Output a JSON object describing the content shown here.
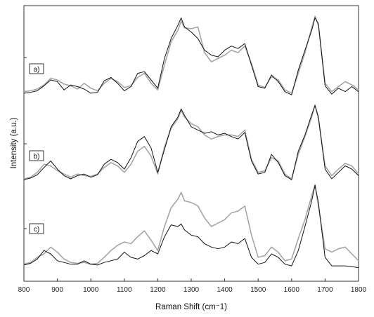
{
  "chart_data": {
    "type": "line",
    "xlabel": "Raman Shift (cm⁻1)",
    "ylabel": "Intensity (a.u.)",
    "xlim": [
      800,
      1800
    ],
    "x_ticks": [
      "800",
      "900",
      "1000",
      "1100",
      "1200",
      "1300",
      "1400",
      "1500",
      "1600",
      "1700",
      "1800"
    ],
    "grid": false,
    "legend": "none",
    "colors": {
      "dark": "#111111",
      "light": "#a6a6a6"
    },
    "panels": [
      {
        "label": "a)",
        "series": [
          {
            "color": "dark",
            "x": [
              800,
              820,
              840,
              860,
              880,
              900,
              920,
              940,
              960,
              980,
              1000,
              1020,
              1040,
              1060,
              1080,
              1100,
              1120,
              1140,
              1160,
              1180,
              1200,
              1220,
              1240,
              1260,
              1270,
              1280,
              1300,
              1320,
              1340,
              1360,
              1380,
              1400,
              1420,
              1440,
              1460,
              1480,
              1500,
              1520,
              1540,
              1560,
              1580,
              1600,
              1620,
              1640,
              1660,
              1670,
              1680,
              1700,
              1720,
              1740,
              1760,
              1780,
              1800
            ],
            "y": [
              0.06,
              0.07,
              0.09,
              0.15,
              0.22,
              0.2,
              0.1,
              0.16,
              0.14,
              0.11,
              0.06,
              0.07,
              0.21,
              0.25,
              0.18,
              0.09,
              0.14,
              0.3,
              0.32,
              0.22,
              0.12,
              0.48,
              0.72,
              0.88,
              0.97,
              0.86,
              0.8,
              0.72,
              0.58,
              0.52,
              0.5,
              0.58,
              0.63,
              0.6,
              0.66,
              0.4,
              0.14,
              0.12,
              0.28,
              0.2,
              0.08,
              0.04,
              0.34,
              0.58,
              0.82,
              0.97,
              0.9,
              0.15,
              0.05,
              0.12,
              0.08,
              0.14,
              0.08
            ]
          },
          {
            "color": "light",
            "x": [
              800,
              820,
              840,
              860,
              880,
              900,
              920,
              940,
              960,
              980,
              1000,
              1020,
              1040,
              1060,
              1080,
              1100,
              1120,
              1140,
              1160,
              1180,
              1200,
              1220,
              1240,
              1260,
              1270,
              1280,
              1300,
              1320,
              1340,
              1360,
              1380,
              1400,
              1420,
              1440,
              1460,
              1480,
              1500,
              1520,
              1540,
              1560,
              1580,
              1600,
              1620,
              1640,
              1660,
              1670,
              1680,
              1700,
              1720,
              1740,
              1760,
              1780,
              1800
            ],
            "y": [
              0.08,
              0.09,
              0.11,
              0.16,
              0.24,
              0.22,
              0.17,
              0.15,
              0.11,
              0.18,
              0.12,
              0.09,
              0.18,
              0.24,
              0.2,
              0.13,
              0.15,
              0.25,
              0.3,
              0.18,
              0.1,
              0.4,
              0.68,
              0.82,
              0.93,
              0.85,
              0.84,
              0.86,
              0.55,
              0.44,
              0.48,
              0.52,
              0.58,
              0.55,
              0.63,
              0.42,
              0.16,
              0.13,
              0.26,
              0.22,
              0.1,
              0.06,
              0.3,
              0.55,
              0.85,
              0.99,
              0.88,
              0.18,
              0.08,
              0.14,
              0.2,
              0.16,
              0.1
            ]
          }
        ]
      },
      {
        "label": "b)",
        "series": [
          {
            "color": "dark",
            "x": [
              800,
              820,
              840,
              860,
              880,
              900,
              920,
              940,
              960,
              980,
              1000,
              1020,
              1040,
              1060,
              1080,
              1100,
              1120,
              1140,
              1160,
              1180,
              1200,
              1220,
              1240,
              1260,
              1270,
              1280,
              1300,
              1320,
              1340,
              1360,
              1380,
              1400,
              1420,
              1440,
              1460,
              1480,
              1500,
              1520,
              1540,
              1560,
              1580,
              1600,
              1620,
              1640,
              1660,
              1670,
              1680,
              1700,
              1720,
              1740,
              1760,
              1780,
              1800
            ],
            "y": [
              0.05,
              0.07,
              0.11,
              0.2,
              0.28,
              0.18,
              0.1,
              0.06,
              0.1,
              0.12,
              0.08,
              0.11,
              0.24,
              0.3,
              0.26,
              0.18,
              0.32,
              0.52,
              0.58,
              0.44,
              0.14,
              0.42,
              0.7,
              0.82,
              0.92,
              0.84,
              0.7,
              0.66,
              0.62,
              0.64,
              0.6,
              0.62,
              0.58,
              0.55,
              0.63,
              0.28,
              0.12,
              0.14,
              0.36,
              0.26,
              0.1,
              0.05,
              0.4,
              0.6,
              0.85,
              0.96,
              0.82,
              0.18,
              0.06,
              0.14,
              0.22,
              0.18,
              0.1
            ]
          },
          {
            "color": "light",
            "x": [
              800,
              820,
              840,
              860,
              880,
              900,
              920,
              940,
              960,
              980,
              1000,
              1020,
              1040,
              1060,
              1080,
              1100,
              1120,
              1140,
              1160,
              1180,
              1200,
              1220,
              1240,
              1260,
              1270,
              1280,
              1300,
              1320,
              1340,
              1360,
              1380,
              1400,
              1420,
              1440,
              1460,
              1480,
              1500,
              1520,
              1540,
              1560,
              1580,
              1600,
              1620,
              1640,
              1660,
              1670,
              1680,
              1700,
              1720,
              1740,
              1760,
              1780,
              1800
            ],
            "y": [
              0.06,
              0.08,
              0.14,
              0.24,
              0.22,
              0.16,
              0.12,
              0.08,
              0.12,
              0.1,
              0.09,
              0.12,
              0.2,
              0.26,
              0.22,
              0.14,
              0.24,
              0.4,
              0.46,
              0.34,
              0.12,
              0.45,
              0.68,
              0.8,
              0.9,
              0.82,
              0.74,
              0.7,
              0.6,
              0.55,
              0.58,
              0.6,
              0.6,
              0.58,
              0.66,
              0.3,
              0.14,
              0.16,
              0.32,
              0.28,
              0.12,
              0.06,
              0.36,
              0.58,
              0.82,
              0.97,
              0.8,
              0.22,
              0.1,
              0.18,
              0.25,
              0.22,
              0.12
            ]
          }
        ]
      },
      {
        "label": "c)",
        "series": [
          {
            "color": "dark",
            "x": [
              800,
              820,
              840,
              860,
              880,
              900,
              920,
              940,
              960,
              980,
              1000,
              1020,
              1040,
              1060,
              1080,
              1100,
              1120,
              1140,
              1160,
              1180,
              1200,
              1220,
              1240,
              1260,
              1270,
              1280,
              1300,
              1320,
              1340,
              1360,
              1380,
              1400,
              1420,
              1440,
              1460,
              1480,
              1500,
              1520,
              1540,
              1560,
              1580,
              1600,
              1620,
              1640,
              1660,
              1670,
              1680,
              1700,
              1720,
              1740,
              1760,
              1780,
              1800
            ],
            "y": [
              0.05,
              0.07,
              0.12,
              0.22,
              0.18,
              0.1,
              0.08,
              0.06,
              0.06,
              0.1,
              0.06,
              0.05,
              0.08,
              0.1,
              0.12,
              0.2,
              0.14,
              0.12,
              0.16,
              0.22,
              0.18,
              0.38,
              0.52,
              0.5,
              0.53,
              0.46,
              0.4,
              0.38,
              0.3,
              0.26,
              0.24,
              0.26,
              0.32,
              0.3,
              0.36,
              0.14,
              0.06,
              0.08,
              0.18,
              0.14,
              0.06,
              0.04,
              0.22,
              0.5,
              0.8,
              0.98,
              0.78,
              0.14,
              0.04,
              0.04,
              0.04,
              0.03,
              0.02
            ]
          },
          {
            "color": "light",
            "x": [
              800,
              820,
              840,
              860,
              880,
              900,
              920,
              940,
              960,
              980,
              1000,
              1020,
              1040,
              1060,
              1080,
              1100,
              1120,
              1140,
              1160,
              1180,
              1200,
              1220,
              1240,
              1260,
              1270,
              1280,
              1300,
              1320,
              1340,
              1360,
              1380,
              1400,
              1420,
              1440,
              1460,
              1480,
              1500,
              1520,
              1540,
              1560,
              1580,
              1600,
              1620,
              1640,
              1660,
              1670,
              1680,
              1700,
              1720,
              1740,
              1760,
              1780,
              1800
            ],
            "y": [
              0.06,
              0.08,
              0.14,
              0.18,
              0.26,
              0.2,
              0.12,
              0.08,
              0.07,
              0.08,
              0.06,
              0.07,
              0.14,
              0.22,
              0.28,
              0.32,
              0.3,
              0.38,
              0.45,
              0.34,
              0.22,
              0.5,
              0.72,
              0.82,
              0.9,
              0.8,
              0.78,
              0.74,
              0.6,
              0.5,
              0.54,
              0.58,
              0.66,
              0.68,
              0.74,
              0.4,
              0.14,
              0.16,
              0.26,
              0.2,
              0.1,
              0.12,
              0.36,
              0.58,
              0.86,
              0.99,
              0.74,
              0.24,
              0.2,
              0.24,
              0.26,
              0.18,
              0.1
            ]
          }
        ]
      }
    ]
  }
}
